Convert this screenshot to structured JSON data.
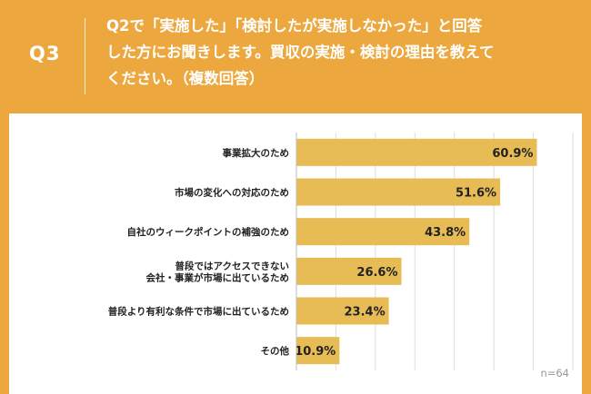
{
  "header": {
    "question_number": "Q3",
    "question_text": "Q2で「実施した」「検討したが実施しなかった」と回答\nした方にお聞きします。買収の実施・検討の理由を教えて\nください。（複数回答）"
  },
  "chart_data": {
    "type": "bar",
    "orientation": "horizontal",
    "categories": [
      "事業拡大のため",
      "市場の変化への対応のため",
      "自社のウィークポイントの補強のため",
      "普段ではアクセスできない\n会社・事業が市場に出ているため",
      "普段より有利な条件で市場に出ているため",
      "その他"
    ],
    "values": [
      60.9,
      51.6,
      43.8,
      26.6,
      23.4,
      10.9
    ],
    "value_labels": [
      "60.9%",
      "51.6%",
      "43.8%",
      "26.6%",
      "23.4%",
      "10.9%"
    ],
    "xlim": [
      0,
      70
    ],
    "grid": true,
    "bar_color": "#E8BC55",
    "note": "n=64"
  }
}
